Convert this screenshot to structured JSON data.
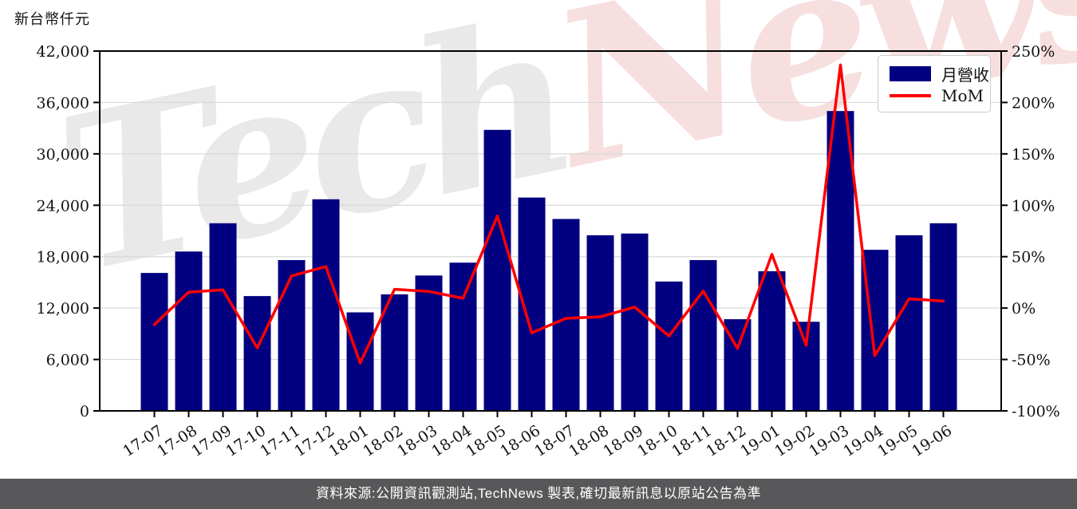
{
  "watermark": {
    "part1": "Tech",
    "part2": "News"
  },
  "footer": {
    "text": "資料來源:公開資訊觀測站,TechNews 製表,確切最新訊息以原站公告為準"
  },
  "colors": {
    "bar": "#000080",
    "line": "#ff0000",
    "grid": "#d8d8d8",
    "axis": "#000000",
    "text": "#111111",
    "footer_bg": "#58585a",
    "legend_border": "#cccccc",
    "watermark_gray": "#e9e9e9",
    "watermark_pink": "#f7dfdf"
  },
  "chart_data": {
    "type": "bar",
    "title": "",
    "ylabel": "新台幣仟元",
    "categories": [
      "17-07",
      "17-08",
      "17-09",
      "17-10",
      "17-11",
      "17-12",
      "18-01",
      "18-02",
      "18-03",
      "18-04",
      "18-05",
      "18-06",
      "18-07",
      "18-08",
      "18-09",
      "18-10",
      "18-11",
      "18-12",
      "19-01",
      "19-02",
      "19-03",
      "19-04",
      "19-05",
      "19-06"
    ],
    "series": [
      {
        "name": "月營收",
        "type": "bar",
        "axis": "left",
        "color": "#000080",
        "values": [
          16100,
          18600,
          21900,
          13400,
          17600,
          24700,
          11500,
          13600,
          15800,
          17300,
          32800,
          24900,
          22400,
          20500,
          20700,
          15100,
          17600,
          10700,
          16300,
          10400,
          35000,
          18800,
          20500,
          21900
        ]
      },
      {
        "name": "MoM",
        "type": "line",
        "axis": "right",
        "unit": "%",
        "color": "#ff0000",
        "values": [
          -16.0,
          15.5,
          17.7,
          -38.8,
          31.3,
          40.3,
          -53.4,
          18.3,
          16.2,
          9.5,
          89.6,
          -24.1,
          -10.0,
          -8.5,
          1.0,
          -27.1,
          16.6,
          -39.2,
          52.3,
          -36.2,
          236.5,
          -46.3,
          9.0,
          6.8
        ]
      }
    ],
    "left_axis": {
      "min": 0,
      "max": 42000,
      "tick_step": 6000,
      "unit_label": "新台幣仟元"
    },
    "right_axis": {
      "min": -100,
      "max": 250,
      "tick_step": 50,
      "unit": "%"
    },
    "grid": true,
    "legend_position": "top-right"
  }
}
